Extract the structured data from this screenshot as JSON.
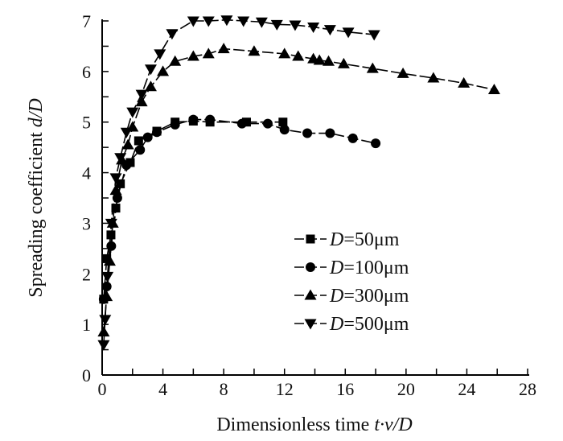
{
  "chart_data": {
    "type": "line",
    "title": "",
    "xlabel": "Dimensionless time t·v/D",
    "xlabel_parts": {
      "pre": "Dimensionless time ",
      "italic": "t·v/D"
    },
    "ylabel": "Spreading coefficient d/D",
    "ylabel_parts": {
      "pre": "Spreading coefficient ",
      "italic": "d/D"
    },
    "xlim": [
      0,
      28
    ],
    "ylim": [
      0,
      7
    ],
    "xticks": [
      0,
      4,
      8,
      12,
      16,
      20,
      24,
      28
    ],
    "yticks": [
      0,
      1,
      2,
      3,
      4,
      5,
      6,
      7
    ],
    "grid": false,
    "legend_position": "center-right",
    "series": [
      {
        "name": "D=50μm",
        "legend_var": "D",
        "legend_rest": "=50μm",
        "marker": "square",
        "points": [
          [
            0.1,
            1.5
          ],
          [
            0.3,
            2.3
          ],
          [
            0.58,
            2.77
          ],
          [
            0.9,
            3.3
          ],
          [
            1.2,
            3.78
          ],
          [
            1.85,
            4.2
          ],
          [
            2.4,
            4.63
          ],
          [
            3.6,
            4.82
          ],
          [
            4.8,
            5.0
          ],
          [
            6.0,
            5.02
          ],
          [
            7.1,
            5.0
          ],
          [
            9.5,
            5.0
          ],
          [
            11.9,
            5.0
          ]
        ]
      },
      {
        "name": "D=100μm",
        "legend_var": "D",
        "legend_rest": "=100μm",
        "marker": "circle",
        "points": [
          [
            0.1,
            1.5
          ],
          [
            0.3,
            1.75
          ],
          [
            0.6,
            2.55
          ],
          [
            1.0,
            3.5
          ],
          [
            1.6,
            4.15
          ],
          [
            2.5,
            4.45
          ],
          [
            3.0,
            4.7
          ],
          [
            3.6,
            4.8
          ],
          [
            4.8,
            4.95
          ],
          [
            6.0,
            5.05
          ],
          [
            7.1,
            5.05
          ],
          [
            9.2,
            4.97
          ],
          [
            10.9,
            4.97
          ],
          [
            12.0,
            4.85
          ],
          [
            13.5,
            4.78
          ],
          [
            15.0,
            4.78
          ],
          [
            16.5,
            4.68
          ],
          [
            18.0,
            4.58
          ]
        ]
      },
      {
        "name": "D=300μm",
        "legend_var": "D",
        "legend_rest": "=300μm",
        "marker": "triangle-up",
        "points": [
          [
            0.1,
            0.85
          ],
          [
            0.3,
            1.55
          ],
          [
            0.5,
            2.25
          ],
          [
            0.7,
            3.0
          ],
          [
            0.9,
            3.65
          ],
          [
            1.3,
            4.25
          ],
          [
            1.7,
            4.55
          ],
          [
            2.0,
            4.9
          ],
          [
            2.6,
            5.4
          ],
          [
            3.2,
            5.7
          ],
          [
            4.0,
            6.0
          ],
          [
            4.8,
            6.2
          ],
          [
            6.0,
            6.3
          ],
          [
            7.0,
            6.35
          ],
          [
            8.0,
            6.45
          ],
          [
            10.0,
            6.4
          ],
          [
            12.0,
            6.35
          ],
          [
            12.9,
            6.3
          ],
          [
            13.9,
            6.25
          ],
          [
            14.3,
            6.22
          ],
          [
            14.9,
            6.2
          ],
          [
            15.9,
            6.15
          ],
          [
            17.8,
            6.06
          ],
          [
            19.8,
            5.96
          ],
          [
            21.8,
            5.87
          ],
          [
            23.8,
            5.77
          ],
          [
            25.8,
            5.64
          ]
        ]
      },
      {
        "name": "D=500μm",
        "legend_var": "D",
        "legend_rest": "=500μm",
        "marker": "triangle-down",
        "points": [
          [
            0.1,
            0.6
          ],
          [
            0.2,
            1.1
          ],
          [
            0.35,
            1.95
          ],
          [
            0.6,
            3.0
          ],
          [
            0.9,
            3.9
          ],
          [
            1.2,
            4.3
          ],
          [
            1.6,
            4.8
          ],
          [
            2.0,
            5.2
          ],
          [
            2.6,
            5.55
          ],
          [
            3.2,
            6.05
          ],
          [
            3.8,
            6.35
          ],
          [
            4.6,
            6.75
          ],
          [
            6.0,
            7.0
          ],
          [
            7.0,
            7.0
          ],
          [
            8.2,
            7.02
          ],
          [
            9.3,
            7.0
          ],
          [
            10.5,
            6.98
          ],
          [
            11.5,
            6.93
          ],
          [
            12.7,
            6.92
          ],
          [
            13.9,
            6.88
          ],
          [
            15.0,
            6.83
          ],
          [
            16.2,
            6.78
          ],
          [
            17.9,
            6.73
          ]
        ]
      }
    ]
  }
}
